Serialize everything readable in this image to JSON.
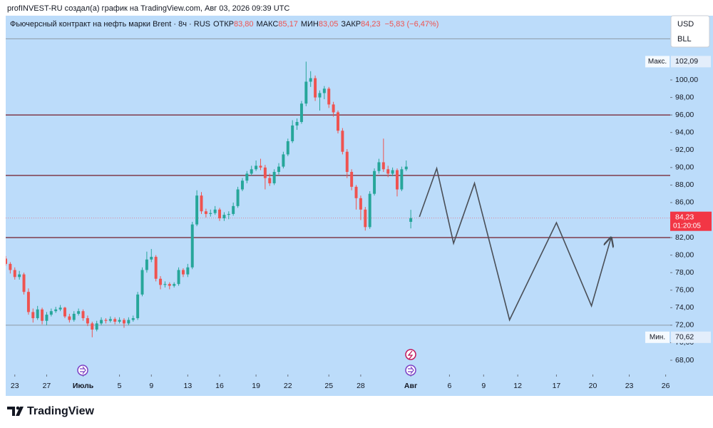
{
  "header": {
    "title": "profINVEST-RU создал(а) график на TradingView.com, Авг 03, 2026 09:39 UTC"
  },
  "currency_buttons": [
    "USD",
    "BLL"
  ],
  "logo": {
    "text": "TradingView"
  },
  "chart_data": {
    "type": "candlestick",
    "title": "Фьючерсный контракт на нефть марки Brent · 8ч · RUS",
    "ohlc_legend": {
      "labels": [
        "ОТКР",
        "МАКС",
        "МИН",
        "ЗАКР"
      ],
      "values": [
        83.8,
        85.17,
        83.05,
        84.23
      ],
      "value_labels": [
        "83,80",
        "85,17",
        "83,05",
        "84,23"
      ],
      "change": "−5,83 (−6,47%)"
    },
    "up_color": "#26a69a",
    "down_color": "#ef5350",
    "x": [
      0,
      1,
      2,
      3,
      4,
      5,
      6,
      7,
      8,
      9,
      10,
      11,
      12,
      13,
      14,
      15,
      16,
      17,
      18,
      19,
      20,
      21,
      22,
      23,
      24,
      25,
      26,
      27,
      28,
      29,
      30,
      31,
      32,
      33,
      34,
      35,
      36,
      37,
      38,
      39,
      40,
      41,
      42,
      43,
      44,
      45,
      46,
      47,
      48,
      49,
      50,
      51,
      52,
      53,
      54,
      55,
      56,
      57,
      58,
      59,
      60,
      61,
      62,
      63,
      64,
      65,
      66,
      67,
      68,
      69,
      70,
      71,
      72,
      73,
      74,
      75,
      76,
      77,
      78,
      79,
      80,
      81,
      82,
      83,
      84,
      85,
      86,
      87,
      88,
      89
    ],
    "candles": [
      [
        79.6,
        79.9,
        78.8,
        79.0
      ],
      [
        79.0,
        79.2,
        77.9,
        78.3
      ],
      [
        78.3,
        78.6,
        77.2,
        77.5
      ],
      [
        77.5,
        78.2,
        77.2,
        77.8
      ],
      [
        77.8,
        78.0,
        75.5,
        75.8
      ],
      [
        75.8,
        76.2,
        73.2,
        73.5
      ],
      [
        73.5,
        73.9,
        72.3,
        72.8
      ],
      [
        72.8,
        74.2,
        72.6,
        73.8
      ],
      [
        73.8,
        74.0,
        72.1,
        72.5
      ],
      [
        72.5,
        73.5,
        72.0,
        73.2
      ],
      [
        73.2,
        73.9,
        73.0,
        73.6
      ],
      [
        73.6,
        74.1,
        73.4,
        73.8
      ],
      [
        73.8,
        74.3,
        73.6,
        74.0
      ],
      [
        74.0,
        74.1,
        72.8,
        73.0
      ],
      [
        73.0,
        73.3,
        72.3,
        72.6
      ],
      [
        72.6,
        73.6,
        72.4,
        73.3
      ],
      [
        73.3,
        73.9,
        73.1,
        73.6
      ],
      [
        73.6,
        73.8,
        72.5,
        72.8
      ],
      [
        72.8,
        73.1,
        71.9,
        72.2
      ],
      [
        72.2,
        72.4,
        70.62,
        71.5
      ],
      [
        71.5,
        72.5,
        71.3,
        72.2
      ],
      [
        72.2,
        72.9,
        72.0,
        72.6
      ],
      [
        72.6,
        72.8,
        72.2,
        72.5
      ],
      [
        72.5,
        73.0,
        72.3,
        72.7
      ],
      [
        72.7,
        72.9,
        72.1,
        72.4
      ],
      [
        72.4,
        72.9,
        72.2,
        72.6
      ],
      [
        72.6,
        72.8,
        71.7,
        72.2
      ],
      [
        72.2,
        72.9,
        72.0,
        72.6
      ],
      [
        72.6,
        73.1,
        72.4,
        72.8
      ],
      [
        72.8,
        75.8,
        72.6,
        75.5
      ],
      [
        75.5,
        78.6,
        75.3,
        78.3
      ],
      [
        78.3,
        80.4,
        78.0,
        79.5
      ],
      [
        79.5,
        80.7,
        79.2,
        79.8
      ],
      [
        79.8,
        80.0,
        77.0,
        77.3
      ],
      [
        77.3,
        77.6,
        76.1,
        76.6
      ],
      [
        76.6,
        77.0,
        76.3,
        76.7
      ],
      [
        76.7,
        76.9,
        76.1,
        76.5
      ],
      [
        76.5,
        76.9,
        76.3,
        76.7
      ],
      [
        76.7,
        78.6,
        76.5,
        78.3
      ],
      [
        78.3,
        78.5,
        77.5,
        77.8
      ],
      [
        77.8,
        79.0,
        77.5,
        78.6
      ],
      [
        78.6,
        83.8,
        78.4,
        83.5
      ],
      [
        83.5,
        87.4,
        83.3,
        86.8
      ],
      [
        86.8,
        87.2,
        84.7,
        85.0
      ],
      [
        85.0,
        85.3,
        84.3,
        84.7
      ],
      [
        84.7,
        85.2,
        84.4,
        84.8
      ],
      [
        84.8,
        85.6,
        84.6,
        85.2
      ],
      [
        85.2,
        85.4,
        83.9,
        84.2
      ],
      [
        84.2,
        84.9,
        83.9,
        84.6
      ],
      [
        84.6,
        85.0,
        84.1,
        84.7
      ],
      [
        84.7,
        86.0,
        84.5,
        85.6
      ],
      [
        85.6,
        87.8,
        85.4,
        87.5
      ],
      [
        87.5,
        88.8,
        87.3,
        88.5
      ],
      [
        88.5,
        89.6,
        88.2,
        89.3
      ],
      [
        89.3,
        90.2,
        89.1,
        89.8
      ],
      [
        89.8,
        90.8,
        89.6,
        90.2
      ],
      [
        90.2,
        91.0,
        89.7,
        90.0
      ],
      [
        90.0,
        90.3,
        87.5,
        88.8
      ],
      [
        88.8,
        89.3,
        87.9,
        88.2
      ],
      [
        88.2,
        89.8,
        88.0,
        89.5
      ],
      [
        89.5,
        90.5,
        89.2,
        90.1
      ],
      [
        90.1,
        91.8,
        89.9,
        91.5
      ],
      [
        91.5,
        93.3,
        91.3,
        93.0
      ],
      [
        93.0,
        95.4,
        92.8,
        94.8
      ],
      [
        94.8,
        95.6,
        94.3,
        95.2
      ],
      [
        95.2,
        97.6,
        95.0,
        97.3
      ],
      [
        97.3,
        102.09,
        97.0,
        99.8
      ],
      [
        99.8,
        101.0,
        99.2,
        100.2
      ],
      [
        100.2,
        100.5,
        97.6,
        98.0
      ],
      [
        98.0,
        98.8,
        96.5,
        98.5
      ],
      [
        98.5,
        99.3,
        97.8,
        99.0
      ],
      [
        99.0,
        99.2,
        96.8,
        97.2
      ],
      [
        97.2,
        97.5,
        95.8,
        96.3
      ],
      [
        96.3,
        96.5,
        93.9,
        94.2
      ],
      [
        94.2,
        94.5,
        91.5,
        91.8
      ],
      [
        91.8,
        92.1,
        88.8,
        89.5
      ],
      [
        89.5,
        89.8,
        87.4,
        87.8
      ],
      [
        87.8,
        88.0,
        85.2,
        86.5
      ],
      [
        86.5,
        86.8,
        84.0,
        85.2
      ],
      [
        85.2,
        85.5,
        82.8,
        83.2
      ],
      [
        83.2,
        87.3,
        83.0,
        87.0
      ],
      [
        87.0,
        89.9,
        86.8,
        89.6
      ],
      [
        89.6,
        91.0,
        89.3,
        90.6
      ],
      [
        90.6,
        93.3,
        89.5,
        89.8
      ],
      [
        89.8,
        90.2,
        88.9,
        89.3
      ],
      [
        89.3,
        90.0,
        89.0,
        89.7
      ],
      [
        89.7,
        89.9,
        86.7,
        87.5
      ],
      [
        87.5,
        90.1,
        87.3,
        89.8
      ],
      [
        89.8,
        90.8,
        89.6,
        90.1
      ],
      [
        83.8,
        85.17,
        83.05,
        84.23
      ]
    ],
    "xlim": [
      0,
      146
    ],
    "xticks": [
      {
        "value": 2,
        "label": "23"
      },
      {
        "value": 9,
        "label": "27"
      },
      {
        "value": 17,
        "label": "Июль"
      },
      {
        "value": 25,
        "label": "5"
      },
      {
        "value": 32,
        "label": "9"
      },
      {
        "value": 40,
        "label": "13"
      },
      {
        "value": 47,
        "label": "16"
      },
      {
        "value": 55,
        "label": "19"
      },
      {
        "value": 62,
        "label": "22"
      },
      {
        "value": 71,
        "label": "25"
      },
      {
        "value": 78,
        "label": "28"
      },
      {
        "value": 89,
        "label": "Авг"
      },
      {
        "value": 97.5,
        "label": "6"
      },
      {
        "value": 105,
        "label": "9"
      },
      {
        "value": 112.5,
        "label": "12"
      },
      {
        "value": 121,
        "label": "17"
      },
      {
        "value": 129,
        "label": "20"
      },
      {
        "value": 137,
        "label": "23"
      },
      {
        "value": 145,
        "label": "26"
      }
    ],
    "ylim": [
      66.37,
      105.46
    ],
    "yticks": [
      {
        "value": 68,
        "label": "68,00"
      },
      {
        "value": 70,
        "label": "70,00"
      },
      {
        "value": 72,
        "label": "72,00"
      },
      {
        "value": 74,
        "label": "74,00"
      },
      {
        "value": 76,
        "label": "76,00"
      },
      {
        "value": 78,
        "label": "78,00"
      },
      {
        "value": 80,
        "label": "80,00"
      },
      {
        "value": 82,
        "label": "82,00"
      },
      {
        "value": 84,
        "label": "84,00"
      },
      {
        "value": 86,
        "label": "86,00"
      },
      {
        "value": 88,
        "label": "88,00"
      },
      {
        "value": 90,
        "label": "90,00"
      },
      {
        "value": 92,
        "label": "92,00"
      },
      {
        "value": 94,
        "label": "94,00"
      },
      {
        "value": 96,
        "label": "96,00"
      },
      {
        "value": 98,
        "label": "98,00"
      },
      {
        "value": 100,
        "label": "100,00"
      }
    ],
    "levels": [
      {
        "value": 104.7,
        "color": "#8f9aa6"
      },
      {
        "value": 96,
        "color": "#7a2c3a"
      },
      {
        "value": 89.1,
        "color": "#7a2c3a"
      },
      {
        "value": 82,
        "color": "#7a2c3a"
      },
      {
        "value": 72,
        "color": "#8f9aa6"
      }
    ],
    "max_marker": {
      "label": "Макс.",
      "value": 102.09,
      "value_label": "102,09"
    },
    "min_marker": {
      "label": "Мин.",
      "value": 70.62,
      "value_label": "70,62"
    },
    "last_price": {
      "value": 84.23,
      "label": "84,23",
      "timer": "01:20:05",
      "color": "#f23645"
    },
    "forecast": {
      "x": [
        90.9,
        94.7,
        98.4,
        103,
        110.7,
        121,
        128.7,
        133
      ],
      "values": [
        84.37,
        89.9,
        81.35,
        88.2,
        72.6,
        83.7,
        74.2,
        82.0
      ],
      "color": "#4a4f57"
    }
  }
}
